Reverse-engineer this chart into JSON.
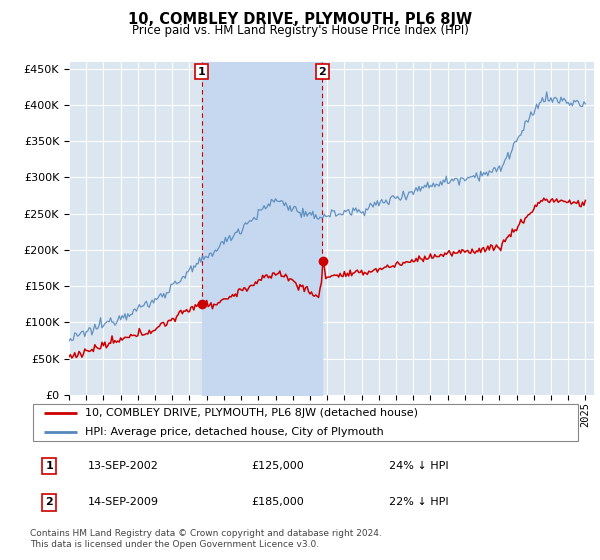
{
  "title": "10, COMBLEY DRIVE, PLYMOUTH, PL6 8JW",
  "subtitle": "Price paid vs. HM Land Registry's House Price Index (HPI)",
  "background_color": "#ffffff",
  "plot_bg_color": "#dce6f1",
  "shade_color": "#c5d8f0",
  "grid_color": "#ffffff",
  "hpi_color": "#5588bb",
  "price_color": "#cc0000",
  "ylim": [
    0,
    460000
  ],
  "yticks": [
    0,
    50000,
    100000,
    150000,
    200000,
    250000,
    300000,
    350000,
    400000,
    450000
  ],
  "transaction1_year": 2002.71,
  "transaction1_price": 125000,
  "transaction2_year": 2009.71,
  "transaction2_price": 185000,
  "legend_label_price": "10, COMBLEY DRIVE, PLYMOUTH, PL6 8JW (detached house)",
  "legend_label_hpi": "HPI: Average price, detached house, City of Plymouth",
  "transaction1_date": "13-SEP-2002",
  "transaction2_date": "14-SEP-2009",
  "transaction1_note": "24% ↓ HPI",
  "transaction2_note": "22% ↓ HPI",
  "footer": "Contains HM Land Registry data © Crown copyright and database right 2024.\nThis data is licensed under the Open Government Licence v3.0."
}
